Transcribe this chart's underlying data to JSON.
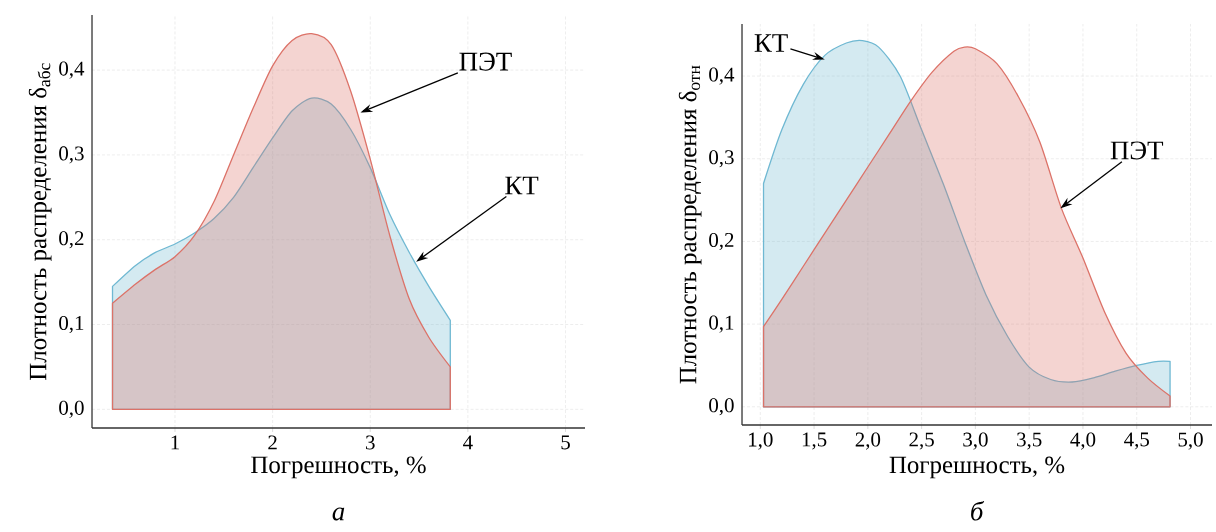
{
  "chart_data": [
    {
      "type": "area",
      "xlabel": "Погрешность, %",
      "ylabel": "Плотность распределения δ$_{абс}$",
      "xlim": [
        0.15,
        5.2
      ],
      "ylim": [
        -0.022,
        0.465
      ],
      "xticks": [
        1,
        2,
        3,
        4,
        5
      ],
      "yticks": [
        {
          "value": 0,
          "label": "0,0"
        },
        {
          "value": 0.1,
          "label": "0,1"
        },
        {
          "value": 0.2,
          "label": "0,2"
        },
        {
          "value": 0.3,
          "label": "0,3"
        },
        {
          "value": 0.4,
          "label": "0,4"
        }
      ],
      "grid": true,
      "series": [
        {
          "color": "#6fb8d2",
          "x": [
            0.36,
            0.6,
            0.8,
            1.0,
            1.2,
            1.4,
            1.6,
            1.8,
            2.0,
            2.2,
            2.4,
            2.6,
            2.8,
            3.0,
            3.2,
            3.4,
            3.6,
            3.82
          ],
          "values": [
            0.145,
            0.17,
            0.185,
            0.195,
            0.208,
            0.225,
            0.25,
            0.285,
            0.32,
            0.352,
            0.367,
            0.36,
            0.33,
            0.285,
            0.23,
            0.185,
            0.145,
            0.105
          ]
        },
        {
          "color": "#dc7268",
          "x": [
            0.36,
            0.6,
            0.8,
            1.0,
            1.2,
            1.4,
            1.6,
            1.8,
            2.0,
            2.2,
            2.4,
            2.6,
            2.8,
            3.0,
            3.2,
            3.4,
            3.6,
            3.82
          ],
          "values": [
            0.125,
            0.148,
            0.165,
            0.18,
            0.205,
            0.245,
            0.3,
            0.355,
            0.405,
            0.435,
            0.443,
            0.43,
            0.375,
            0.295,
            0.205,
            0.13,
            0.085,
            0.05
          ]
        }
      ],
      "annotations": [
        {
          "text": "ПЭТ",
          "x": 2.9,
          "y": 0.35
        },
        {
          "text": "КТ",
          "x": 3.47,
          "y": 0.174
        },
        "*а*"
      ]
    },
    {
      "type": "area",
      "xlabel": "Погрешность, %",
      "ylabel": "Плотность распределения δ$_{отн}$",
      "xlim": [
        0.83,
        5.2
      ],
      "ylim": [
        -0.022,
        0.463
      ],
      "xticks": [
        {
          "value": 1,
          "label": "1,0"
        },
        {
          "value": 1.5,
          "label": "1,5"
        },
        {
          "value": 2,
          "label": "2,0"
        },
        {
          "value": 2.5,
          "label": "2,5"
        },
        {
          "value": 3,
          "label": "3,0"
        },
        {
          "value": 3.5,
          "label": "3,5"
        },
        {
          "value": 4,
          "label": "4,0"
        },
        {
          "value": 4.5,
          "label": "4,5"
        },
        {
          "value": 5,
          "label": "5,0"
        }
      ],
      "yticks": [
        {
          "value": 0,
          "label": "0,0"
        },
        {
          "value": 0.1,
          "label": "0,1"
        },
        {
          "value": 0.2,
          "label": "0,2"
        },
        {
          "value": 0.3,
          "label": "0,3"
        },
        {
          "value": 0.4,
          "label": "0,4"
        }
      ],
      "grid": true,
      "series": [
        {
          "color": "#6fb8d2",
          "x": [
            1.03,
            1.2,
            1.4,
            1.6,
            1.8,
            1.95,
            2.1,
            2.3,
            2.5,
            2.7,
            2.9,
            3.1,
            3.3,
            3.5,
            3.7,
            3.9,
            4.1,
            4.3,
            4.5,
            4.7,
            4.81
          ],
          "values": [
            0.27,
            0.335,
            0.39,
            0.425,
            0.44,
            0.443,
            0.435,
            0.4,
            0.335,
            0.27,
            0.2,
            0.135,
            0.085,
            0.048,
            0.033,
            0.03,
            0.035,
            0.043,
            0.05,
            0.055,
            0.055
          ]
        },
        {
          "color": "#dc7268",
          "x": [
            1.03,
            1.2,
            1.4,
            1.6,
            1.8,
            2.0,
            2.2,
            2.4,
            2.6,
            2.8,
            2.9,
            3.0,
            3.2,
            3.4,
            3.6,
            3.8,
            4.0,
            4.2,
            4.4,
            4.6,
            4.81
          ],
          "values": [
            0.097,
            0.13,
            0.17,
            0.21,
            0.25,
            0.29,
            0.33,
            0.37,
            0.405,
            0.43,
            0.435,
            0.433,
            0.415,
            0.375,
            0.32,
            0.24,
            0.18,
            0.115,
            0.065,
            0.035,
            0.013
          ]
        }
      ],
      "annotations": [
        {
          "text": "КТ",
          "x": 1.6,
          "y": 0.42
        },
        {
          "text": "ПЭТ",
          "x": 3.79,
          "y": 0.24
        },
        "*б*"
      ]
    }
  ]
}
